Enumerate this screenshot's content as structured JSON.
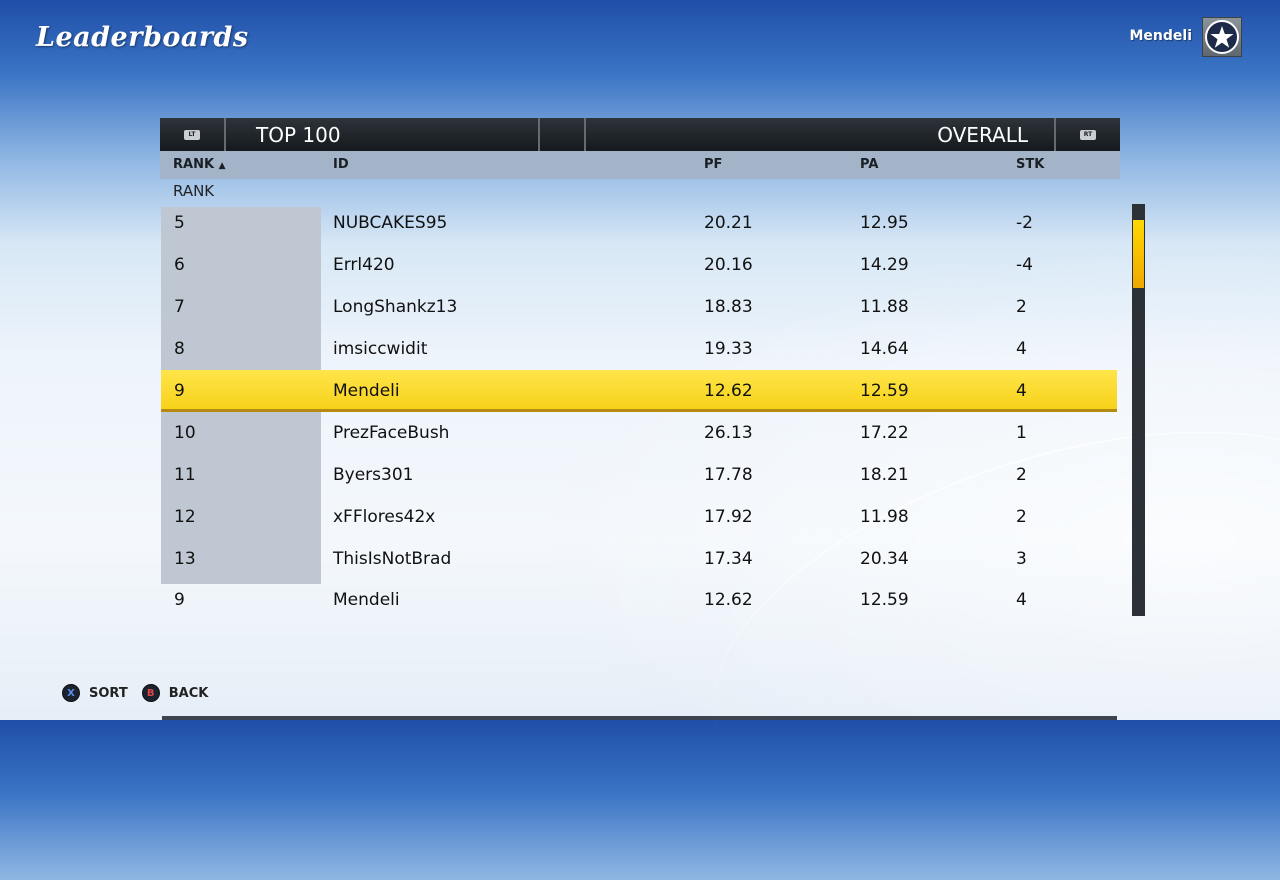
{
  "header": {
    "title": "Leaderboards",
    "username": "Mendeli",
    "team_logo_icon": "star-icon"
  },
  "tabs": {
    "lt_label": "LT",
    "left_title": "TOP 100",
    "right_title": "OVERALL",
    "rt_label": "RT"
  },
  "columns": {
    "rank": "RANK",
    "sort_arrow": "▲",
    "id": "ID",
    "pf": "PF",
    "pa": "PA",
    "stk": "STK"
  },
  "subheader": "RANK",
  "rows": [
    {
      "rank": "5",
      "id": "NUBCAKES95",
      "pf": "20.21",
      "pa": "12.95",
      "stk": "-2"
    },
    {
      "rank": "6",
      "id": "Errl420",
      "pf": "20.16",
      "pa": "14.29",
      "stk": "-4"
    },
    {
      "rank": "7",
      "id": "LongShankz13",
      "pf": "18.83",
      "pa": "11.88",
      "stk": "2"
    },
    {
      "rank": "8",
      "id": "imsiccwidit",
      "pf": "19.33",
      "pa": "14.64",
      "stk": "4"
    },
    {
      "rank": "9",
      "id": "Mendeli",
      "pf": "12.62",
      "pa": "12.59",
      "stk": "4"
    },
    {
      "rank": "10",
      "id": "PrezFaceBush",
      "pf": "26.13",
      "pa": "17.22",
      "stk": "1"
    },
    {
      "rank": "11",
      "id": "Byers301",
      "pf": "17.78",
      "pa": "18.21",
      "stk": "2"
    },
    {
      "rank": "12",
      "id": "xFFlores42x",
      "pf": "17.92",
      "pa": "11.98",
      "stk": "2"
    },
    {
      "rank": "13",
      "id": "ThisIsNotBrad",
      "pf": "17.34",
      "pa": "20.34",
      "stk": "3"
    }
  ],
  "selected_row_index": 4,
  "user_row": {
    "rank": "9",
    "id": "Mendeli",
    "pf": "12.62",
    "pa": "12.59",
    "stk": "4"
  },
  "footer": {
    "x_glyph": "X",
    "sort_label": "SORT",
    "b_glyph": "B",
    "back_label": "BACK"
  },
  "colors": {
    "highlight": "#f7d21a",
    "scroll_thumb": "#ffd800"
  }
}
